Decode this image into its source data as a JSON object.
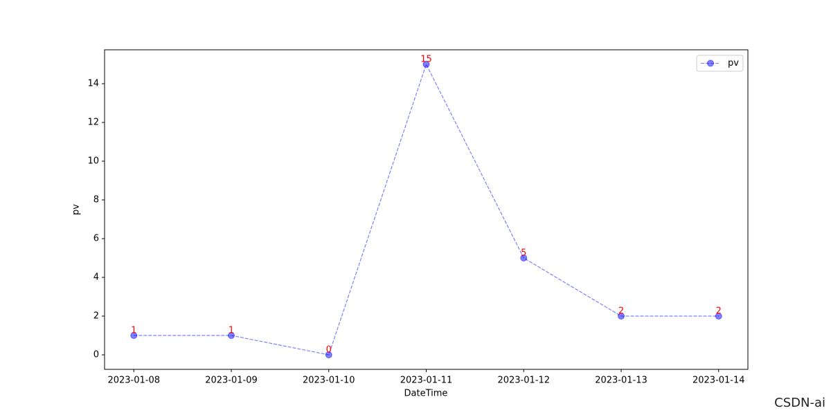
{
  "chart_data": {
    "type": "line",
    "xlabel": "DateTime",
    "ylabel": "pv",
    "categories": [
      "2023-01-08",
      "2023-01-09",
      "2023-01-10",
      "2023-01-11",
      "2023-01-12",
      "2023-01-13",
      "2023-01-14"
    ],
    "series": [
      {
        "name": "pv",
        "color": "#0000ff",
        "values": [
          1,
          1,
          0,
          15,
          5,
          2,
          2
        ]
      }
    ],
    "ylim": [
      -0.75,
      15.75
    ],
    "yticks": [
      0,
      2,
      4,
      6,
      8,
      10,
      12,
      14
    ],
    "grid": false,
    "legend": "upper right",
    "label_color": "#ff0000",
    "watermark": "CSDN-ai"
  }
}
